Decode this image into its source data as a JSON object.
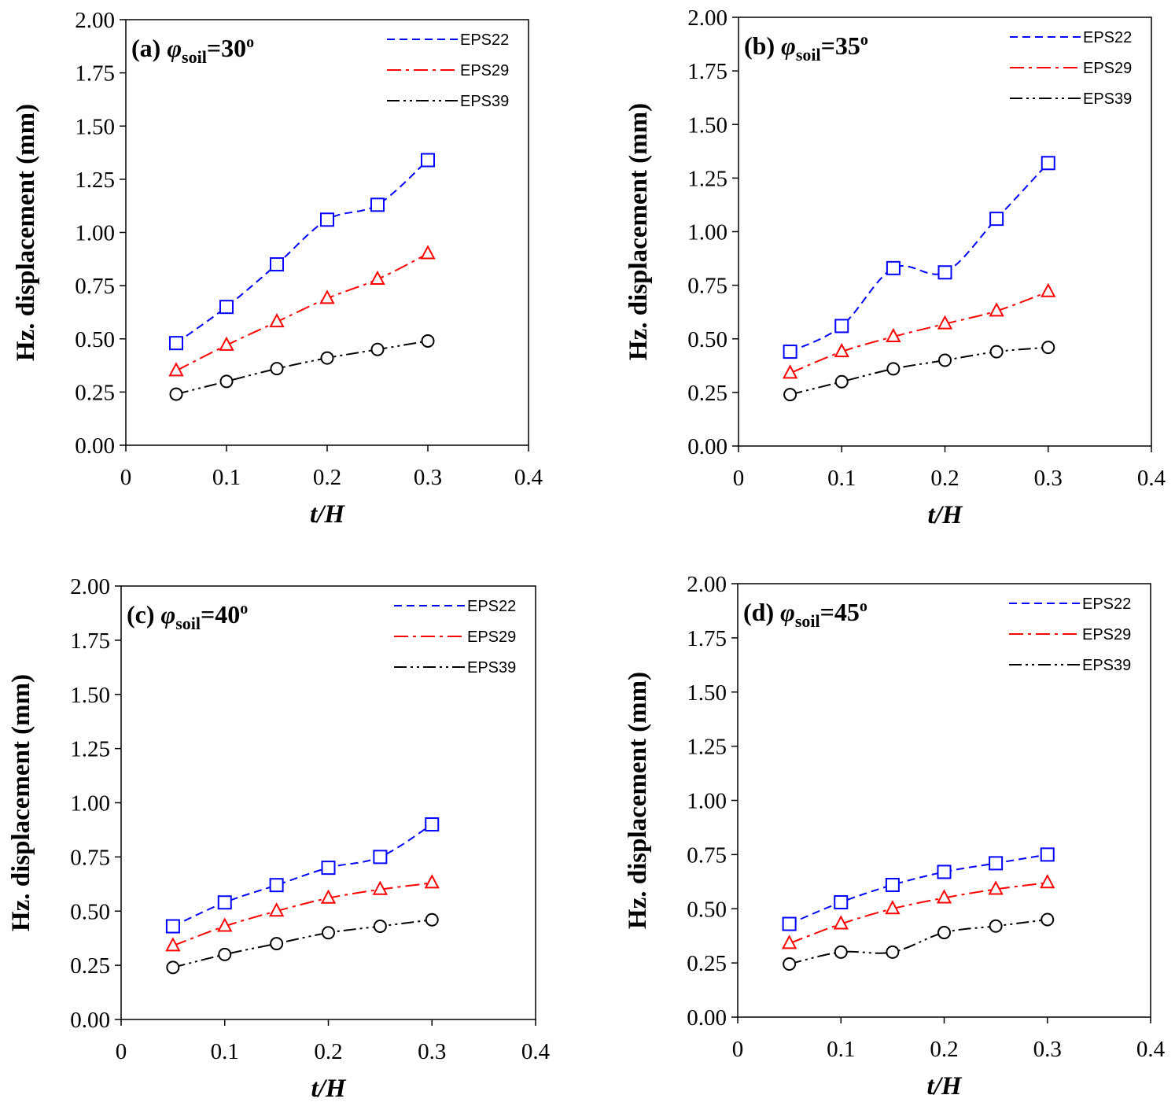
{
  "chart_data": [
    {
      "type": "line",
      "panel": "(a)",
      "title": {
        "prefix": "(a) ",
        "symbol": "φ",
        "subscript": "soil",
        "suffix": "=30",
        "superscript": "o"
      },
      "xlabel": "t/H",
      "ylabel": "Hz. displacement (mm)",
      "xlim": [
        0,
        0.4
      ],
      "ylim": [
        0,
        2.0
      ],
      "xticks": [
        "0",
        "0.1",
        "0.2",
        "0.3",
        "0.4"
      ],
      "yticks": [
        "0.00",
        "0.25",
        "0.50",
        "0.75",
        "1.00",
        "1.25",
        "1.50",
        "1.75",
        "2.00"
      ],
      "x": [
        0.05,
        0.1,
        0.15,
        0.2,
        0.25,
        0.3
      ],
      "series": [
        {
          "name": "EPS22",
          "color": "#0000ff",
          "marker": "square",
          "values": [
            0.48,
            0.65,
            0.85,
            1.06,
            1.13,
            1.34
          ]
        },
        {
          "name": "EPS29",
          "color": "#ff0000",
          "marker": "triangle",
          "values": [
            0.35,
            0.47,
            0.58,
            0.69,
            0.78,
            0.9
          ]
        },
        {
          "name": "EPS39",
          "color": "#000000",
          "marker": "circle",
          "values": [
            0.24,
            0.3,
            0.36,
            0.41,
            0.45,
            0.49
          ]
        }
      ],
      "legend_position": "top-right"
    },
    {
      "type": "line",
      "panel": "(b)",
      "title": {
        "prefix": "(b) ",
        "symbol": "φ",
        "subscript": "soil",
        "suffix": "=35",
        "superscript": "o"
      },
      "xlabel": "t/H",
      "ylabel": "Hz. displacement (mm)",
      "xlim": [
        0,
        0.4
      ],
      "ylim": [
        0,
        2.0
      ],
      "xticks": [
        "0",
        "0.1",
        "0.2",
        "0.3",
        "0.4"
      ],
      "yticks": [
        "0.00",
        "0.25",
        "0.50",
        "0.75",
        "1.00",
        "1.25",
        "1.50",
        "1.75",
        "2.00"
      ],
      "x": [
        0.05,
        0.1,
        0.15,
        0.2,
        0.25,
        0.3
      ],
      "series": [
        {
          "name": "EPS22",
          "color": "#0000ff",
          "marker": "square",
          "values": [
            0.44,
            0.56,
            0.83,
            0.81,
            1.06,
            1.32
          ]
        },
        {
          "name": "EPS29",
          "color": "#ff0000",
          "marker": "triangle",
          "values": [
            0.34,
            0.44,
            0.51,
            0.57,
            0.63,
            0.72
          ]
        },
        {
          "name": "EPS39",
          "color": "#000000",
          "marker": "circle",
          "values": [
            0.24,
            0.3,
            0.36,
            0.4,
            0.44,
            0.46
          ]
        }
      ],
      "legend_position": "top-right"
    },
    {
      "type": "line",
      "panel": "(c)",
      "title": {
        "prefix": "(c) ",
        "symbol": "φ",
        "subscript": "soil",
        "suffix": "=40",
        "superscript": "o"
      },
      "xlabel": "t/H",
      "ylabel": "Hz. displacement (mm)",
      "xlim": [
        0,
        0.4
      ],
      "ylim": [
        0,
        2.0
      ],
      "xticks": [
        "0",
        "0.1",
        "0.2",
        "0.3",
        "0.4"
      ],
      "yticks": [
        "0.00",
        "0.25",
        "0.50",
        "0.75",
        "1.00",
        "1.25",
        "1.50",
        "1.75",
        "2.00"
      ],
      "x": [
        0.05,
        0.1,
        0.15,
        0.2,
        0.25,
        0.3
      ],
      "series": [
        {
          "name": "EPS22",
          "color": "#0000ff",
          "marker": "square",
          "values": [
            0.43,
            0.54,
            0.62,
            0.7,
            0.75,
            0.9
          ]
        },
        {
          "name": "EPS29",
          "color": "#ff0000",
          "marker": "triangle",
          "values": [
            0.34,
            0.43,
            0.5,
            0.56,
            0.6,
            0.63
          ]
        },
        {
          "name": "EPS39",
          "color": "#000000",
          "marker": "circle",
          "values": [
            0.24,
            0.3,
            0.35,
            0.4,
            0.43,
            0.46
          ]
        }
      ],
      "legend_position": "top-right"
    },
    {
      "type": "line",
      "panel": "(d)",
      "title": {
        "prefix": "(d) ",
        "symbol": "φ",
        "subscript": "soil",
        "suffix": "=45",
        "superscript": "o"
      },
      "xlabel": "t/H",
      "ylabel": "Hz. displacement (mm)",
      "xlim": [
        0,
        0.4
      ],
      "ylim": [
        0,
        2.0
      ],
      "xticks": [
        "0",
        "0.1",
        "0.2",
        "0.3",
        "0.4"
      ],
      "yticks": [
        "0.00",
        "0.25",
        "0.50",
        "0.75",
        "1.00",
        "1.25",
        "1.50",
        "1.75",
        "2.00"
      ],
      "x": [
        0.05,
        0.1,
        0.15,
        0.2,
        0.25,
        0.3
      ],
      "series": [
        {
          "name": "EPS22",
          "color": "#0000ff",
          "marker": "square",
          "values": [
            0.43,
            0.53,
            0.61,
            0.67,
            0.71,
            0.75
          ]
        },
        {
          "name": "EPS29",
          "color": "#ff0000",
          "marker": "triangle",
          "values": [
            0.34,
            0.43,
            0.5,
            0.55,
            0.59,
            0.62
          ]
        },
        {
          "name": "EPS39",
          "color": "#000000",
          "marker": "circle",
          "values": [
            0.245,
            0.3,
            0.3,
            0.39,
            0.42,
            0.45
          ]
        }
      ],
      "legend_position": "top-right"
    }
  ]
}
